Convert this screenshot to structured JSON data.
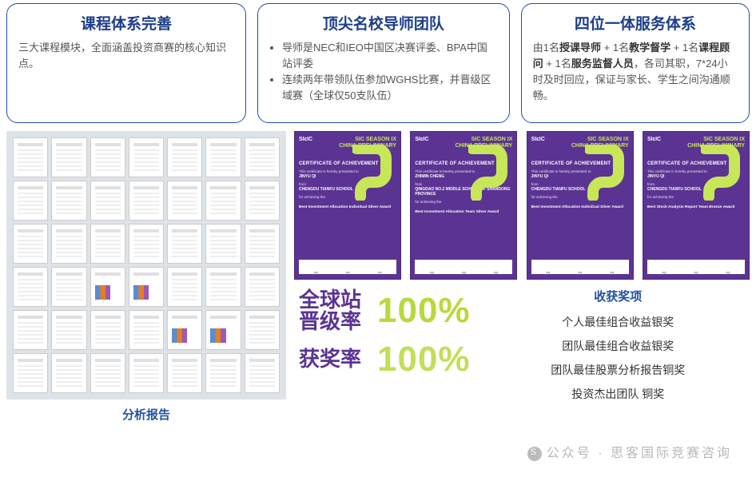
{
  "colors": {
    "card_border": "#2151a1",
    "title_blue": "#1b3d8a",
    "body_grey": "#555555",
    "purple": "#5b3393",
    "lime": "#b8d93e",
    "cert_lime_text": "#c7e658",
    "grid_bg": "#dde3e8",
    "background": "#ffffff"
  },
  "cards": [
    {
      "title": "课程体系完善",
      "body": "三大课程模块，全面涵盖投资商赛的核心知识点。"
    },
    {
      "title": "顶尖名校导师团队",
      "bullets": [
        "导师是NEC和IEO中国区决赛评委、BPA中国站评委",
        "连续两年带领队伍参加WGHS比赛，并晋级区域赛（全球仅50支队伍）"
      ]
    },
    {
      "title": "四位一体服务体系",
      "rich": [
        "由1名",
        "授课导师",
        " + 1名",
        "教学督学",
        " + 1名",
        "课程顾问",
        " + 1名",
        "服务监督人员",
        "，各司其职，7*24小时及时回应，保证与家长、学生之间沟通顺畅。"
      ]
    }
  ],
  "reports": {
    "label": "分析报告",
    "rows": 6,
    "cols": 7,
    "chart_indices": [
      23,
      24,
      32,
      33
    ]
  },
  "certificates": {
    "logo": "SIɛIC",
    "event_lines": [
      "SIC SEASON IX",
      "CHINA PRELIMINARY"
    ],
    "coa": "CERTIFICATE OF ACHIEVEMENT",
    "preface": "This certificate is hereby presented to",
    "from": "from",
    "achieving": "for achieving the",
    "items": [
      {
        "name": "JINYU QI",
        "school": "CHENGDU TIANFU SCHOOL",
        "award": "Best Investment Allocation Individual Silver Award"
      },
      {
        "name": "ZHIMIN CHENG",
        "school": "QINGDAO NO.2 MIDDLE SCHOOL OF SHANDONG PROVINCE",
        "award": "Best Investment Allocation Team Silver Award"
      },
      {
        "name": "JINYU QI",
        "school": "CHENGDU TIANFU SCHOOL",
        "award": "Best Investment Allocation Individual Silver Award"
      },
      {
        "name": "JINYU QI",
        "school": "CHENGDU TIANFU SCHOOL",
        "award": "Best Stock Analysis Report Team Bronze Award"
      }
    ]
  },
  "stats": [
    {
      "label_lines": [
        "全球站",
        "晋级率"
      ],
      "value": "100%"
    },
    {
      "label_lines": [
        "获奖率"
      ],
      "value": "100%"
    }
  ],
  "awards": {
    "title": "收获奖项",
    "list": [
      "个人最佳组合收益银奖",
      "团队最佳组合收益银奖",
      "团队最佳股票分析报告铜奖",
      "投资杰出团队 铜奖"
    ]
  },
  "watermark": "公众号 · 思客国际竞赛咨询"
}
